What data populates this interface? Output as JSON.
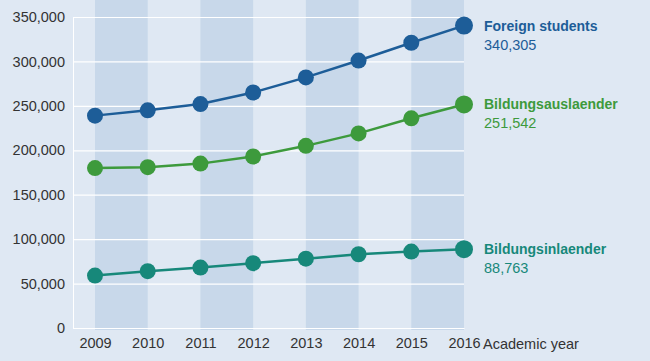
{
  "chart_data": {
    "type": "line",
    "x_label": "Academic year",
    "x": [
      2009,
      2010,
      2011,
      2012,
      2013,
      2014,
      2015,
      2016
    ],
    "xlim": [
      2009,
      2016
    ],
    "xticks": [
      2009,
      2010,
      2011,
      2012,
      2013,
      2014,
      2015,
      2016
    ],
    "ylim": [
      0,
      350000
    ],
    "yticks": [
      0,
      {
        "value": 50000,
        "label": "50,000"
      },
      {
        "value": 100000,
        "label": "100,000"
      },
      {
        "value": 150000,
        "label": "150,000"
      },
      {
        "value": 200000,
        "label": "200,000"
      },
      {
        "value": 250000,
        "label": "250,000"
      },
      {
        "value": 300000,
        "label": "300,000"
      },
      {
        "value": 350000,
        "label": "350,000"
      }
    ],
    "grid": true,
    "data_labels": true,
    "marker": "circle",
    "series": [
      {
        "name": "Foreign students",
        "color": "#1d5d98",
        "values": [
          239000,
          245000,
          252000,
          265000,
          282000,
          301000,
          321000,
          340305
        ],
        "value_labels": [
          null,
          null,
          null,
          null,
          null,
          null,
          null,
          "340,305"
        ]
      },
      {
        "name": "Bildungsauslaender",
        "color": "#3d9a3c",
        "values": [
          180000,
          181000,
          185000,
          193000,
          205000,
          219000,
          236000,
          251542
        ],
        "value_labels": [
          null,
          null,
          null,
          null,
          null,
          null,
          null,
          "251,542"
        ]
      },
      {
        "name": "Bildungsinlaender",
        "color": "#17887a",
        "values": [
          59000,
          64000,
          68000,
          73000,
          78000,
          83000,
          86000,
          88763
        ],
        "value_labels": [
          null,
          null,
          null,
          null,
          null,
          null,
          null,
          "88,763"
        ]
      }
    ]
  }
}
